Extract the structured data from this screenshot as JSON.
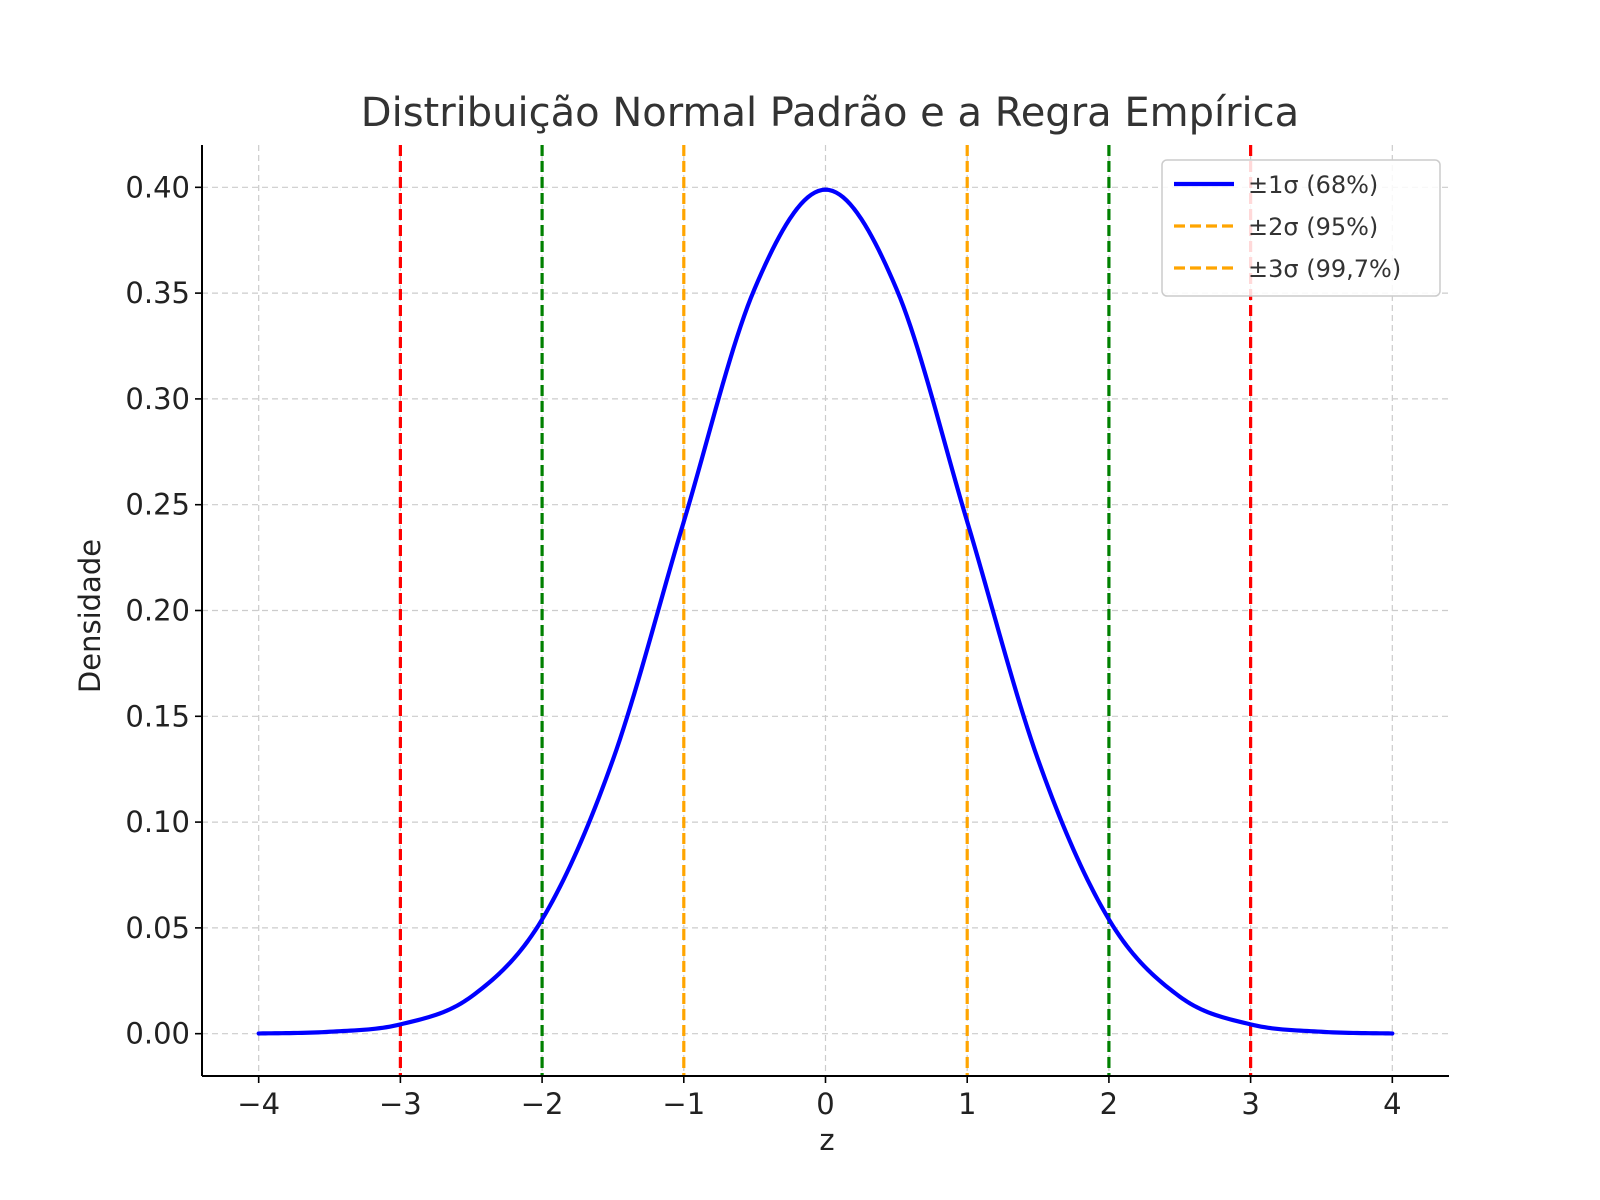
{
  "chart_data": {
    "type": "line",
    "title": "Distribuição Normal Padrão e a Regra Empírica",
    "xlabel": "z",
    "ylabel": "Densidade",
    "xlim": [
      -4.4,
      4.4
    ],
    "ylim": [
      -0.02,
      0.42
    ],
    "xticks": [
      -4,
      -3,
      -2,
      -1,
      0,
      1,
      2,
      3,
      4
    ],
    "xtick_labels": [
      "−4",
      "−3",
      "−2",
      "−1",
      "0",
      "1",
      "2",
      "3",
      "4"
    ],
    "yticks": [
      0.0,
      0.05,
      0.1,
      0.15,
      0.2,
      0.25,
      0.3,
      0.35,
      0.4
    ],
    "ytick_labels": [
      "0.00",
      "0.05",
      "0.10",
      "0.15",
      "0.20",
      "0.25",
      "0.30",
      "0.35",
      "0.40"
    ],
    "grid": true,
    "legend_position": "top-right",
    "series": [
      {
        "name": "±1σ (68%)",
        "kind": "curve",
        "color": "#0000ff",
        "x": [
          -4.0,
          -3.5,
          -3.0,
          -2.5,
          -2.0,
          -1.5,
          -1.0,
          -0.5,
          0.0,
          0.5,
          1.0,
          1.5,
          2.0,
          2.5,
          3.0,
          3.5,
          4.0
        ],
        "y": [
          0.0001,
          0.0009,
          0.0044,
          0.0175,
          0.054,
          0.1295,
          0.242,
          0.3521,
          0.3989,
          0.3521,
          0.242,
          0.1295,
          0.054,
          0.0175,
          0.0044,
          0.0009,
          0.0001
        ]
      }
    ],
    "vlines": [
      {
        "x": -1,
        "color": "#ffa500",
        "group": "±1"
      },
      {
        "x": 1,
        "color": "#ffa500",
        "group": "±1"
      },
      {
        "x": -2,
        "color": "#008000",
        "group": "±2"
      },
      {
        "x": 2,
        "color": "#008000",
        "group": "±2"
      },
      {
        "x": -3,
        "color": "#ff0000",
        "group": "±3"
      },
      {
        "x": 3,
        "color": "#ff0000",
        "group": "±3"
      }
    ],
    "legend": [
      {
        "label": "±1σ (68%)",
        "color": "#0000ff",
        "style": "solid"
      },
      {
        "label": "±2σ (95%)",
        "color": "#ffa500",
        "style": "dashed"
      },
      {
        "label": "±3σ (99,7%)",
        "color": "#ffa500",
        "style": "dashed"
      }
    ],
    "colors": {
      "grid": "#cccccc",
      "axis": "#000000",
      "legend_border": "#cccccc"
    }
  }
}
